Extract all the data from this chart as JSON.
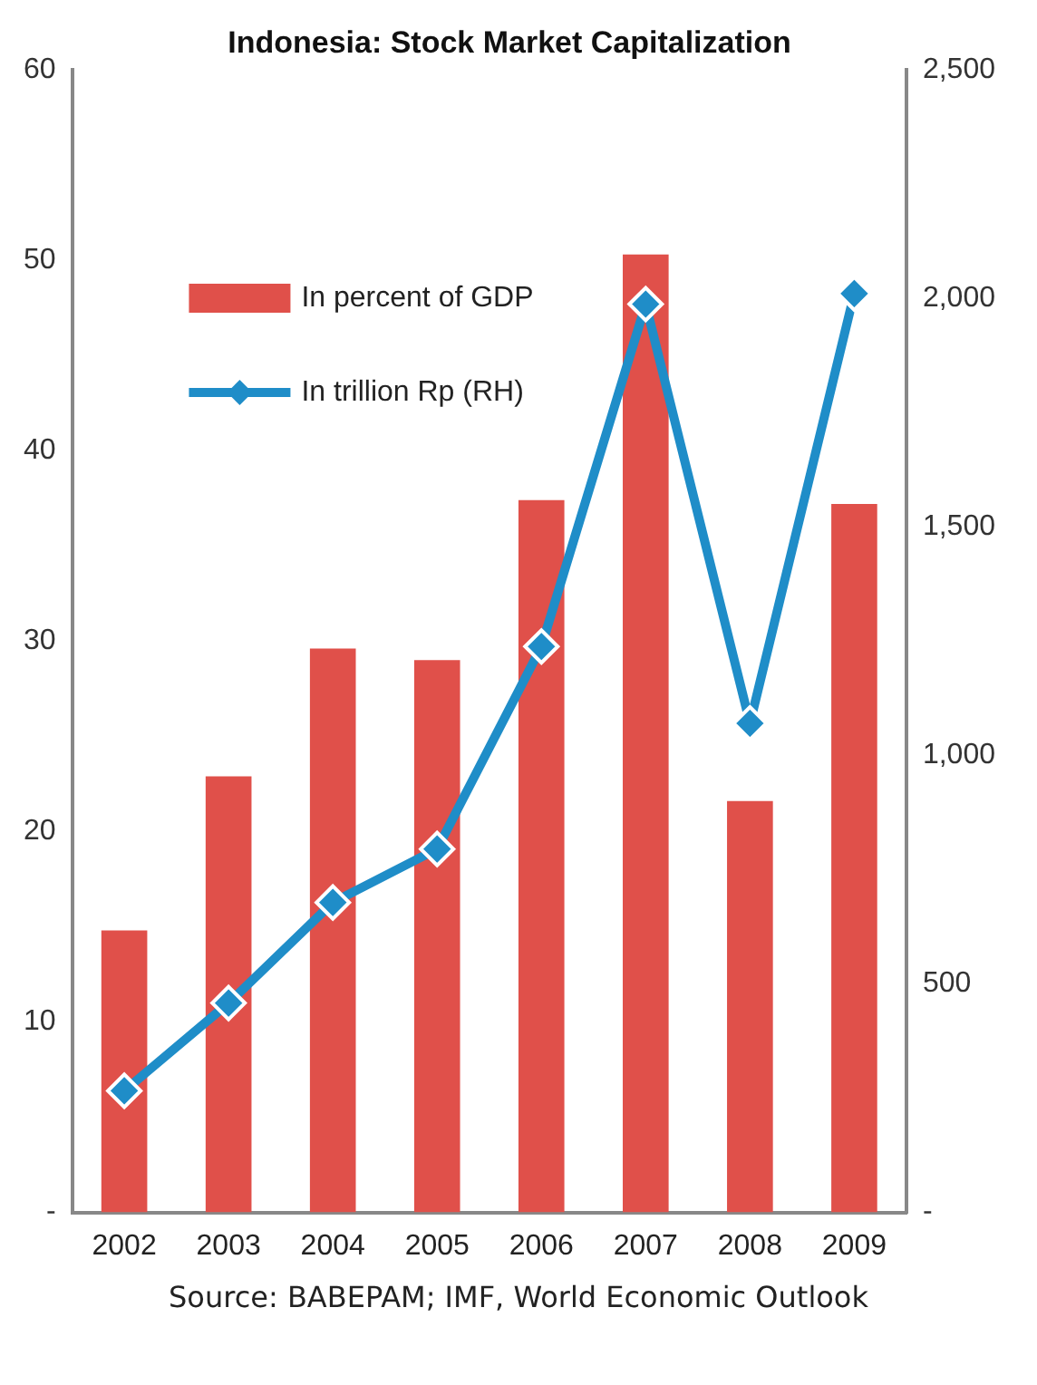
{
  "chart_data": {
    "type": "bar",
    "title": "Indonesia: Stock Market Capitalization",
    "categories": [
      "2002",
      "2003",
      "2004",
      "2005",
      "2006",
      "2007",
      "2008",
      "2009"
    ],
    "series": [
      {
        "name": "In percent of GDP",
        "color": "#e0504a",
        "values": [
          14.8,
          22.9,
          29.6,
          29.0,
          37.4,
          50.3,
          21.6,
          37.2
        ]
      },
      {
        "name": "In trillion Rp (RH)",
        "type": "line",
        "axis": "y2",
        "color": "#1f8dc8",
        "marker": "diamond",
        "values": [
          266,
          458,
          678,
          795,
          1238,
          1987,
          1070,
          2010
        ]
      }
    ],
    "ylim": [
      0,
      60
    ],
    "yticks": [
      {
        "value": 0,
        "label": "-"
      },
      10,
      20,
      30,
      40,
      50,
      60
    ],
    "y2lim": [
      0,
      2500
    ],
    "y2ticks": [
      {
        "value": 0,
        "label": "-"
      },
      500,
      {
        "value": 1000,
        "label": "1,000"
      },
      {
        "value": 1500,
        "label": "1,500"
      },
      {
        "value": 2000,
        "label": "2,000"
      },
      {
        "value": 2500,
        "label": "2,500"
      }
    ],
    "grid": false,
    "legend": "top left",
    "annotations": [
      "Source: BABEPAM; IMF, World Economic Outlook"
    ]
  }
}
